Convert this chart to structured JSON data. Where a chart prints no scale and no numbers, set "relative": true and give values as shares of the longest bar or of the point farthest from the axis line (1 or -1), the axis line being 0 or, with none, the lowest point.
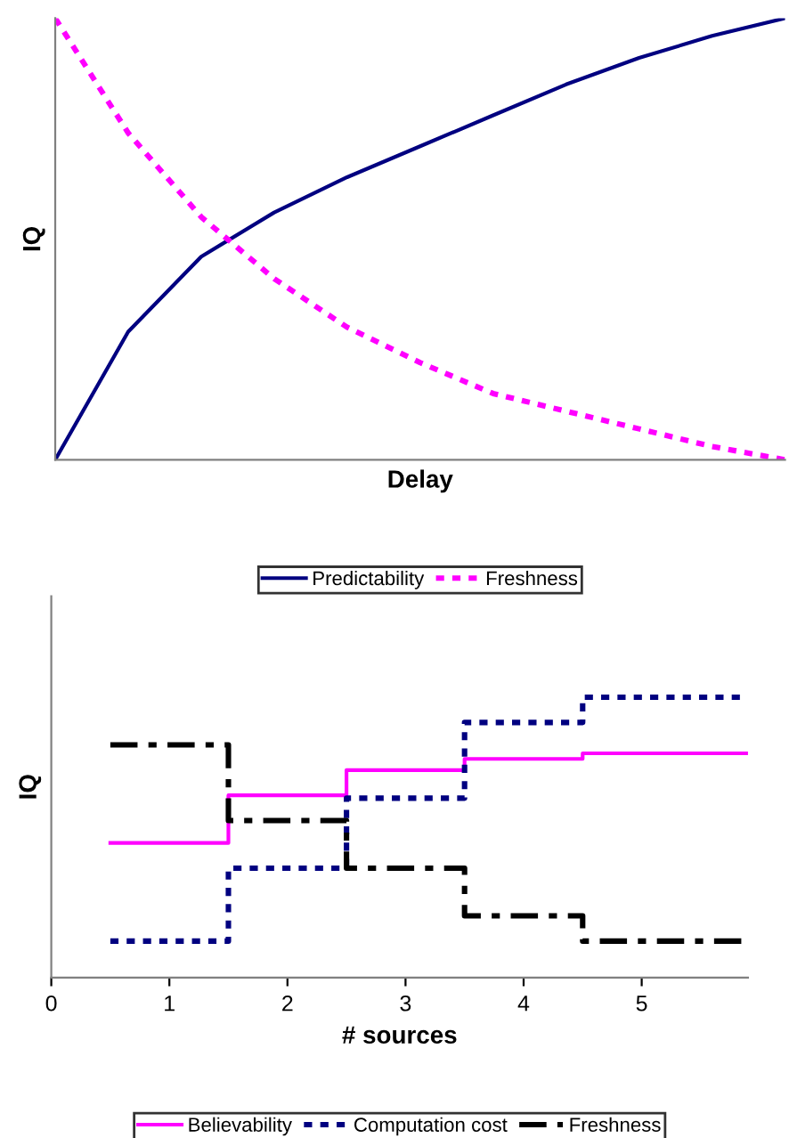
{
  "chart_data": [
    {
      "type": "line",
      "relative": true,
      "xlabel": "Delay",
      "ylabel": "IQ",
      "legend": "bottom",
      "tick_labels": false,
      "categories": [
        null,
        null,
        null,
        null,
        null,
        null,
        null,
        null,
        null,
        null,
        null
      ],
      "series": [
        {
          "name": "Predictability",
          "color": "#000080",
          "line_style": "solid",
          "values": [
            0,
            0.29,
            0.46,
            0.56,
            0.64,
            0.71,
            0.78,
            0.85,
            0.91,
            0.96,
            1
          ]
        },
        {
          "name": "Freshness",
          "color": "#ff00ff",
          "line_style": "dotted",
          "values": [
            1,
            0.74,
            0.55,
            0.41,
            0.3,
            0.22,
            0.15,
            0.11,
            0.07,
            0.03,
            0
          ]
        }
      ]
    },
    {
      "type": "step",
      "relative": true,
      "xlabel": "# sources",
      "ylabel": "IQ",
      "legend": "bottom",
      "tick_labels": "x",
      "xlim": [
        0,
        5.9
      ],
      "xticks": [
        0,
        1,
        2,
        3,
        4,
        5
      ],
      "x": [
        0.5,
        1.5,
        2.5,
        3.5,
        4.5,
        5.9
      ],
      "series": [
        {
          "name": "Believability",
          "color": "#ff00ff",
          "line_style": "solid",
          "values": [
            0.48,
            0.65,
            0.74,
            0.78,
            0.8,
            0.8
          ]
        },
        {
          "name": "Computation cost",
          "color": "#000080",
          "line_style": "dotted",
          "values": [
            0.13,
            0.39,
            0.64,
            0.91,
            1,
            1
          ]
        },
        {
          "name": "Freshness",
          "color": "#000000",
          "line_style": "dashdot",
          "values": [
            0.83,
            0.56,
            0.39,
            0.22,
            0.13,
            0.13
          ]
        }
      ]
    }
  ]
}
